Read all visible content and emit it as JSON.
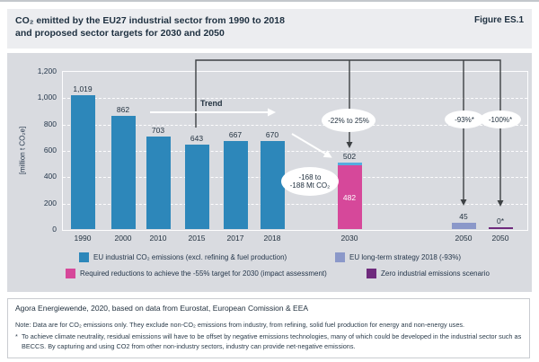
{
  "header": {
    "title_line1": "CO₂ emitted by the EU27 industrial sector from 1990 to 2018",
    "title_line2": "and proposed sector targets for 2030 and 2050",
    "figure_label": "Figure ES.1"
  },
  "series_colors": {
    "eu_industrial": "#2d87ba",
    "eu_industrial_light": "#55ade0",
    "required_reductions": "#d6489a",
    "eu_long_term_strategy": "#8b98c9",
    "zero_emissions": "#6f2b7d"
  },
  "chart_data": {
    "type": "bar",
    "title": "CO₂ emitted by the EU27 industrial sector from 1990 to 2018 and proposed sector targets for 2030 and 2050",
    "ylabel": "[million t CO₂e]",
    "ylim": [
      0,
      1200
    ],
    "grid": true,
    "yticks": [
      {
        "value": 1200,
        "label": "1,200"
      },
      {
        "value": 1000,
        "label": "1,000"
      },
      {
        "value": 800,
        "label": "800"
      },
      {
        "value": 600,
        "label": "600"
      },
      {
        "value": 400,
        "label": "400"
      },
      {
        "value": 200,
        "label": "200"
      },
      {
        "value": 0,
        "label": "0"
      }
    ],
    "bars": [
      {
        "category": "1990",
        "label": "1,019",
        "segments": [
          {
            "series": "eu_industrial",
            "value": 1019
          }
        ]
      },
      {
        "category": "2000",
        "label": "862",
        "segments": [
          {
            "series": "eu_industrial",
            "value": 862
          }
        ]
      },
      {
        "category": "2010",
        "label": "703",
        "segments": [
          {
            "series": "eu_industrial",
            "value": 703
          }
        ]
      },
      {
        "category": "2015",
        "label": "643",
        "segments": [
          {
            "series": "eu_industrial",
            "value": 643
          }
        ]
      },
      {
        "category": "2017",
        "label": "667",
        "segments": [
          {
            "series": "eu_industrial",
            "value": 667
          }
        ]
      },
      {
        "category": "2018",
        "label": "670",
        "segments": [
          {
            "series": "eu_industrial",
            "value": 670
          }
        ]
      },
      {
        "category": "2030",
        "label": "502",
        "segments": [
          {
            "series": "required_reductions",
            "value": 482,
            "inner_label": "482"
          },
          {
            "series": "eu_industrial_light",
            "value": 20
          }
        ]
      },
      {
        "category": "2050",
        "label": "45",
        "segments": [
          {
            "series": "eu_long_term_strategy",
            "value": 45
          }
        ]
      },
      {
        "category": "2050",
        "label": "0*",
        "segments": [
          {
            "series": "zero_emissions",
            "value": 0
          }
        ]
      }
    ],
    "annotations": {
      "trend": "Trend",
      "target_2030": "-22% to 25%",
      "target_2050_strategy": "-93%*",
      "target_2050_zero": "-100%*",
      "reduction_line1": "-168 to",
      "reduction_line2": "-188 Mt CO₂"
    },
    "legend": [
      {
        "series": "eu_industrial",
        "label": "EU industrial CO₂ emissions (excl. refining & fuel production)"
      },
      {
        "series": "eu_long_term_strategy",
        "label": "EU long-term strategy 2018 (-93%)"
      },
      {
        "series": "required_reductions",
        "label": "Required reductions to achieve the -55% target for 2030 (impact assessment)"
      },
      {
        "series": "zero_emissions",
        "label": "Zero industrial emissions scenario"
      }
    ],
    "legend_position": "bottom"
  },
  "footer": {
    "source": "Agora Energiewende, 2020, based on data from Eurostat, European Comission & EEA",
    "note": "Note: Data are for CO₂ emissions only. They exclude non-CO₂ emissions from industry, from refining, solid fuel production for energy and non-energy uses.",
    "asterisk": "*",
    "asterisk_note": "To achieve climate neutrality, residual emissions will have to be offset by negative emissions technologies, many of which could be developed in the industrial sector such as BECCS. By capturing and using CO2 from other non-industry sectors, industry can provide net-negative emissions."
  }
}
